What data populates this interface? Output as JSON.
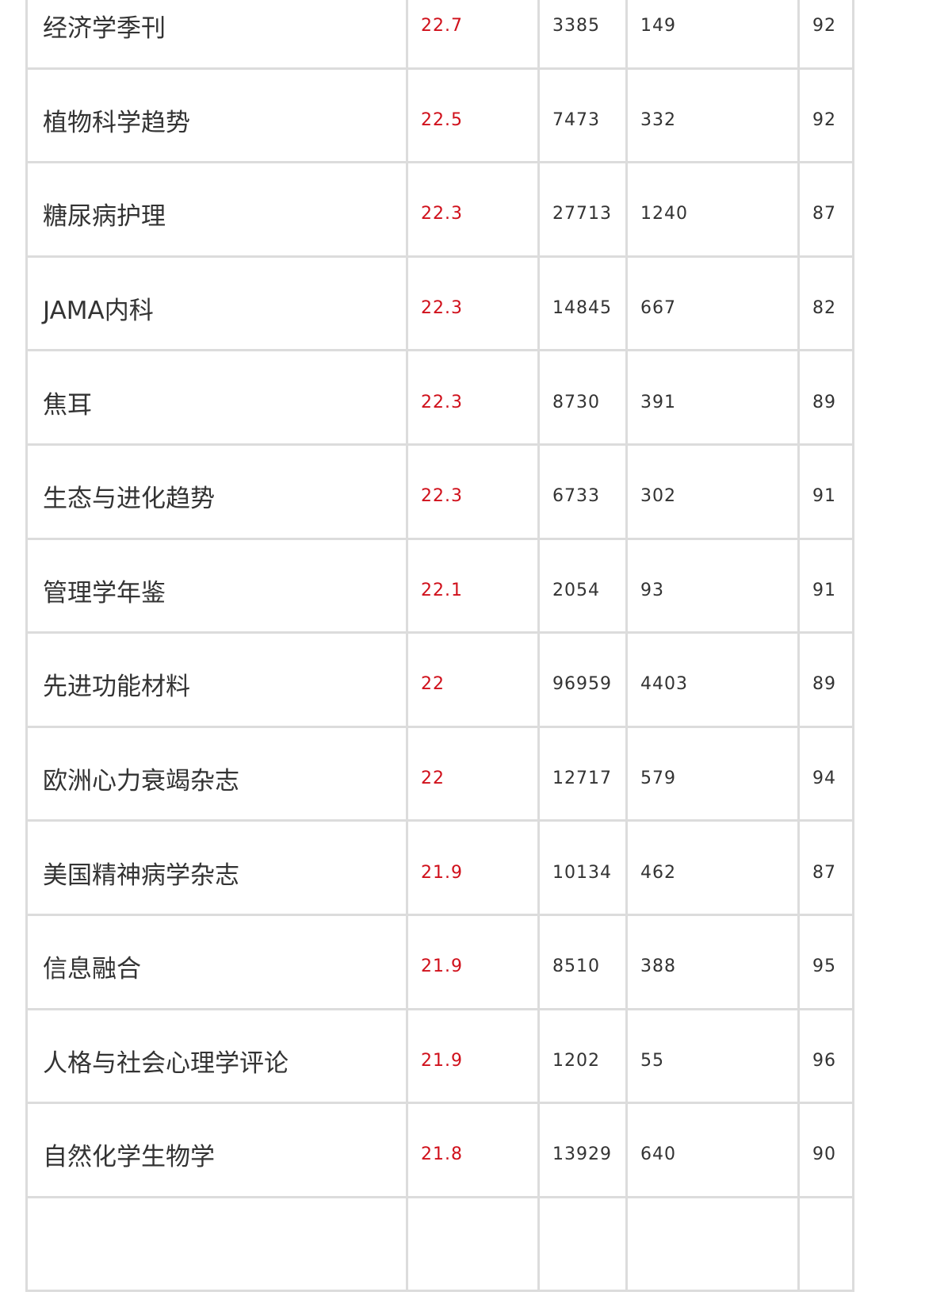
{
  "table": {
    "colors": {
      "impact_factor": "#d0101b",
      "border": "#dcdcdc",
      "text": "#333333"
    },
    "rows": [
      {
        "name": "经济学季刊",
        "if": "22.7",
        "c1": "3385",
        "c2": "149",
        "c3": "92"
      },
      {
        "name": "植物科学趋势",
        "if": "22.5",
        "c1": "7473",
        "c2": "332",
        "c3": "92"
      },
      {
        "name": "糖尿病护理",
        "if": "22.3",
        "c1": "27713",
        "c2": "1240",
        "c3": "87"
      },
      {
        "name": "JAMA内科",
        "if": "22.3",
        "c1": "14845",
        "c2": "667",
        "c3": "82"
      },
      {
        "name": "焦耳",
        "if": "22.3",
        "c1": "8730",
        "c2": "391",
        "c3": "89"
      },
      {
        "name": "生态与进化趋势",
        "if": "22.3",
        "c1": "6733",
        "c2": "302",
        "c3": "91"
      },
      {
        "name": "管理学年鉴",
        "if": "22.1",
        "c1": "2054",
        "c2": "93",
        "c3": "91"
      },
      {
        "name": "先进功能材料",
        "if": "22",
        "c1": "96959",
        "c2": "4403",
        "c3": "89"
      },
      {
        "name": "欧洲心力衰竭杂志",
        "if": "22",
        "c1": "12717",
        "c2": "579",
        "c3": "94"
      },
      {
        "name": "美国精神病学杂志",
        "if": "21.9",
        "c1": "10134",
        "c2": "462",
        "c3": "87"
      },
      {
        "name": "信息融合",
        "if": "21.9",
        "c1": "8510",
        "c2": "388",
        "c3": "95"
      },
      {
        "name": "人格与社会心理学评论",
        "if": "21.9",
        "c1": "1202",
        "c2": "55",
        "c3": "96"
      },
      {
        "name": "自然化学生物学",
        "if": "21.8",
        "c1": "13929",
        "c2": "640",
        "c3": "90"
      },
      {
        "name": "",
        "if": "",
        "c1": "",
        "c2": "",
        "c3": ""
      }
    ]
  }
}
